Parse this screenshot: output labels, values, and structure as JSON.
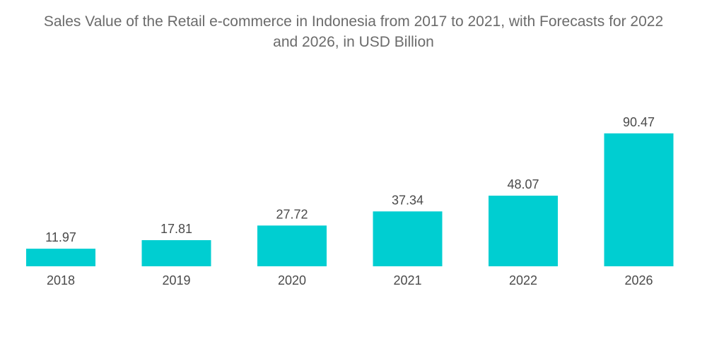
{
  "chart_data": {
    "type": "bar",
    "title_lines": [
      "Sales Value of the Retail e-commerce in Indonesia from 2017 to 2021, with Forecasts for 2022",
      "and 2026, in USD Billion"
    ],
    "categories": [
      "2018",
      "2019",
      "2020",
      "2021",
      "2022",
      "2026"
    ],
    "values": [
      11.97,
      17.81,
      27.72,
      37.34,
      48.07,
      90.47
    ],
    "value_labels": [
      "11.97",
      "17.81",
      "27.72",
      "37.34",
      "48.07",
      "90.47"
    ],
    "xlabel": "",
    "ylabel": "",
    "ylim": [
      0,
      100
    ],
    "grid": false,
    "legend": "none",
    "colors": {
      "bar": "#00ced1"
    }
  }
}
